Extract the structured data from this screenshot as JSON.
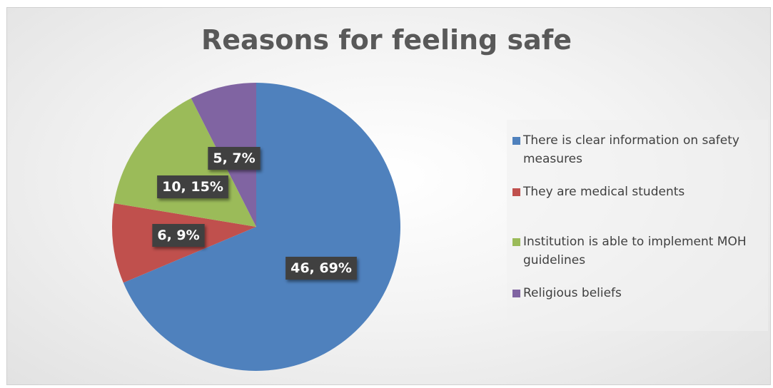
{
  "chart_data": {
    "type": "pie",
    "title": "Reasons for feeling safe",
    "categories": [
      "There is clear information on safety measures",
      "They are medical students",
      "Institution is able to implement MOH guidelines",
      "Religious beliefs"
    ],
    "values": [
      46,
      6,
      10,
      5
    ],
    "percent_labels": [
      "69%",
      "9%",
      "15%",
      "7%"
    ],
    "data_labels": [
      "46, 69%",
      "6, 9%",
      "10, 15%",
      "5, 7%"
    ],
    "colors": [
      "#4F81BD",
      "#C0504D",
      "#9BBB59",
      "#8064A2"
    ],
    "legend_position": "right"
  }
}
